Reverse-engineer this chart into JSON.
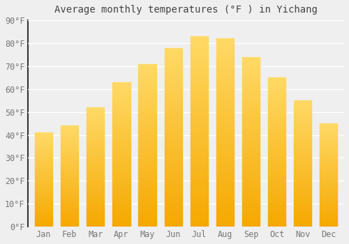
{
  "title": "Average monthly temperatures (°F ) in Yichang",
  "months": [
    "Jan",
    "Feb",
    "Mar",
    "Apr",
    "May",
    "Jun",
    "Jul",
    "Aug",
    "Sep",
    "Oct",
    "Nov",
    "Dec"
  ],
  "values": [
    41,
    44,
    52,
    63,
    71,
    78,
    83,
    82,
    74,
    65,
    55,
    45
  ],
  "bar_color_bottom": "#F5A800",
  "bar_color_top": "#FFD966",
  "background_color": "#EFEFEF",
  "grid_color": "#FFFFFF",
  "spine_color": "#333333",
  "title_color": "#444444",
  "tick_label_color": "#777777",
  "ylim": [
    0,
    90
  ],
  "yticks": [
    0,
    10,
    20,
    30,
    40,
    50,
    60,
    70,
    80,
    90
  ],
  "title_fontsize": 10,
  "tick_fontsize": 8.5
}
